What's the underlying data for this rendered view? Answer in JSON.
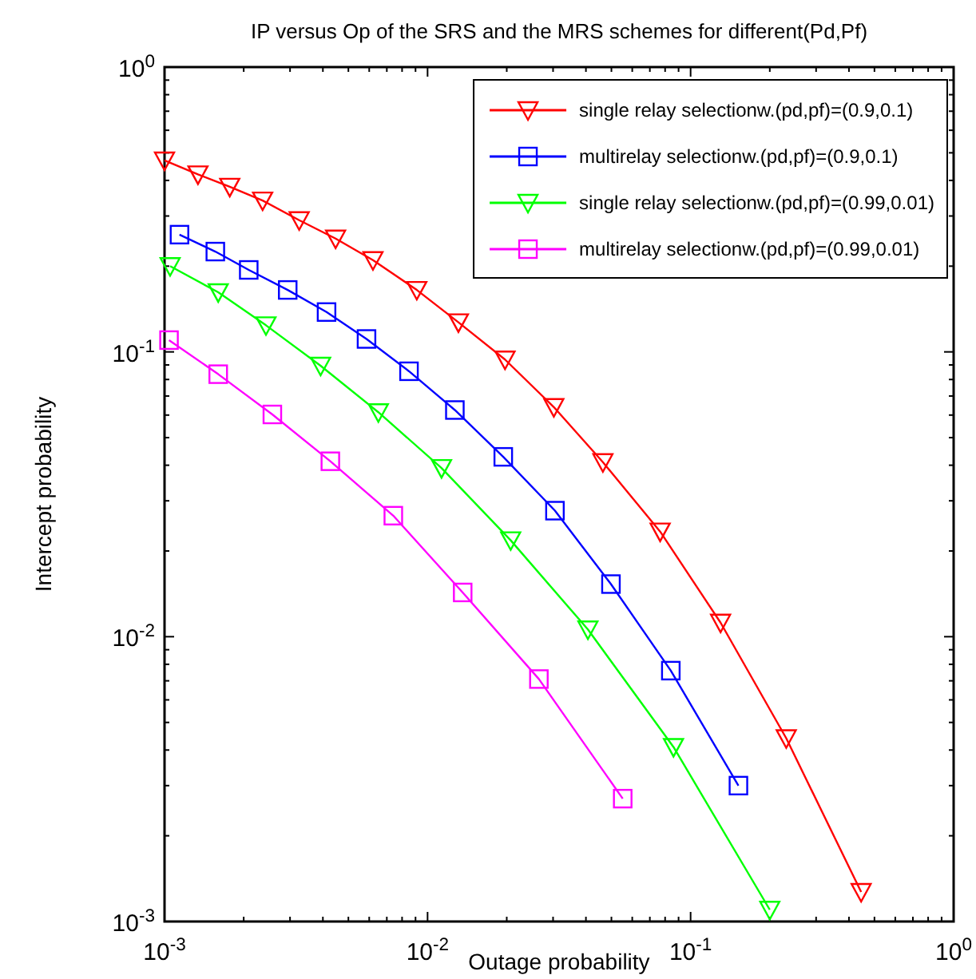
{
  "chart_data": {
    "type": "line",
    "title": "IP versus Op of the SRS and the MRS schemes for different(Pd,Pf)",
    "xlabel": "Outage probability",
    "ylabel": "Intercept probability",
    "log": "xy",
    "grid": false,
    "legend": "top right",
    "xlim": [
      0.001,
      1
    ],
    "ylim": [
      0.001,
      1
    ],
    "xticks": [
      {
        "value": 0.001,
        "label": "10$^{-3}$"
      },
      {
        "value": 0.002,
        "label": null
      },
      {
        "value": 0.003,
        "label": null
      },
      {
        "value": 0.004,
        "label": null
      },
      {
        "value": 0.005,
        "label": null
      },
      {
        "value": 0.006,
        "label": null
      },
      {
        "value": 0.007,
        "label": null
      },
      {
        "value": 0.008,
        "label": null
      },
      {
        "value": 0.009,
        "label": null
      },
      {
        "value": 0.01,
        "label": "10$^{-2}$"
      },
      {
        "value": 0.02,
        "label": null
      },
      {
        "value": 0.03,
        "label": null
      },
      {
        "value": 0.04,
        "label": null
      },
      {
        "value": 0.05,
        "label": null
      },
      {
        "value": 0.06,
        "label": null
      },
      {
        "value": 0.07,
        "label": null
      },
      {
        "value": 0.08,
        "label": null
      },
      {
        "value": 0.09,
        "label": null
      },
      {
        "value": 0.1,
        "label": "10$^{-1}$"
      },
      {
        "value": 0.2,
        "label": null
      },
      {
        "value": 0.3,
        "label": null
      },
      {
        "value": 0.4,
        "label": null
      },
      {
        "value": 0.5,
        "label": null
      },
      {
        "value": 0.6,
        "label": null
      },
      {
        "value": 0.7,
        "label": null
      },
      {
        "value": 0.8,
        "label": null
      },
      {
        "value": 0.9,
        "label": null
      },
      {
        "value": 1,
        "label": "10$^{0}$"
      }
    ],
    "yticks": [
      {
        "value": 0.001,
        "label": "10$^{-3}$"
      },
      {
        "value": 0.002,
        "label": null
      },
      {
        "value": 0.003,
        "label": null
      },
      {
        "value": 0.004,
        "label": null
      },
      {
        "value": 0.005,
        "label": null
      },
      {
        "value": 0.006,
        "label": null
      },
      {
        "value": 0.007,
        "label": null
      },
      {
        "value": 0.008,
        "label": null
      },
      {
        "value": 0.009,
        "label": null
      },
      {
        "value": 0.01,
        "label": "10$^{-2}$"
      },
      {
        "value": 0.02,
        "label": null
      },
      {
        "value": 0.03,
        "label": null
      },
      {
        "value": 0.04,
        "label": null
      },
      {
        "value": 0.05,
        "label": null
      },
      {
        "value": 0.06,
        "label": null
      },
      {
        "value": 0.07,
        "label": null
      },
      {
        "value": 0.08,
        "label": null
      },
      {
        "value": 0.09,
        "label": null
      },
      {
        "value": 0.1,
        "label": "10$^{-1}$"
      },
      {
        "value": 0.2,
        "label": null
      },
      {
        "value": 0.3,
        "label": null
      },
      {
        "value": 0.4,
        "label": null
      },
      {
        "value": 0.5,
        "label": null
      },
      {
        "value": 0.6,
        "label": null
      },
      {
        "value": 0.7,
        "label": null
      },
      {
        "value": 0.8,
        "label": null
      },
      {
        "value": 0.9,
        "label": null
      },
      {
        "value": 1,
        "label": "10$^{0}$"
      }
    ],
    "series": [
      {
        "name": "single relay selectionw.(pd,pf)=(0.9,0.1)",
        "color": "#ff0000",
        "marker": "triangle",
        "x": [
          0.001,
          0.00134,
          0.00177,
          0.00236,
          0.00325,
          0.00447,
          0.0062,
          0.0091,
          0.0131,
          0.0197,
          0.0302,
          0.0464,
          0.0766,
          0.13,
          0.231,
          0.445
        ],
        "values": [
          0.47,
          0.42,
          0.38,
          0.34,
          0.29,
          0.25,
          0.21,
          0.165,
          0.127,
          0.094,
          0.064,
          0.041,
          0.0234,
          0.0112,
          0.0044,
          0.00127
        ]
      },
      {
        "name": "multirelay selectionw.(pd,pf)=(0.9,0.1)",
        "color": "#0000ff",
        "marker": "square",
        "x": [
          0.00114,
          0.00156,
          0.00209,
          0.00294,
          0.00413,
          0.00586,
          0.0085,
          0.0127,
          0.0194,
          0.0305,
          0.0498,
          0.0841,
          0.152
        ],
        "values": [
          0.258,
          0.225,
          0.194,
          0.165,
          0.138,
          0.111,
          0.0855,
          0.0625,
          0.0428,
          0.0277,
          0.0153,
          0.0076,
          0.003
        ]
      },
      {
        "name": "single relay selectionw.(pd,pf)=(0.99,0.01)",
        "color": "#00ff00",
        "marker": "triangle",
        "x": [
          0.00105,
          0.0016,
          0.00243,
          0.00392,
          0.0065,
          0.0113,
          0.0207,
          0.0407,
          0.0861,
          0.2
        ],
        "values": [
          0.2,
          0.162,
          0.124,
          0.0894,
          0.0614,
          0.0391,
          0.0218,
          0.0106,
          0.0041,
          0.0011
        ]
      },
      {
        "name": "multirelay selectionw.(pd,pf)=(0.99,0.01)",
        "color": "#ff00ff",
        "marker": "square",
        "x": [
          0.00104,
          0.0016,
          0.00257,
          0.00427,
          0.00741,
          0.0136,
          0.0265,
          0.0552
        ],
        "values": [
          0.11,
          0.0835,
          0.0603,
          0.0413,
          0.0266,
          0.0143,
          0.0071,
          0.0027
        ]
      }
    ]
  }
}
